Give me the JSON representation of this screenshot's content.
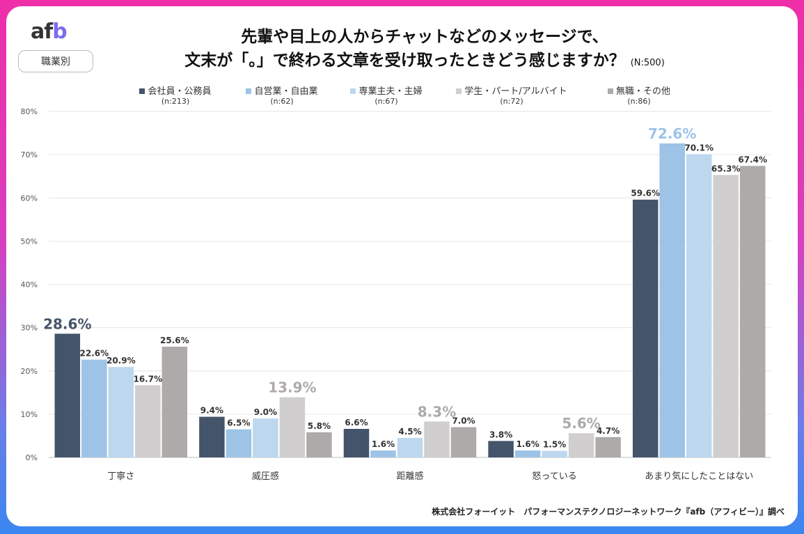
{
  "logo": "afb",
  "tag": "職業別",
  "title_line1": "先輩や目上の人からチャットなどのメッセージで、",
  "title_line2": "文末が「。」で終わる文章を受け取ったときどう感じますか？",
  "sample": "(N:500)",
  "source": "株式会社フォーイット　パフォーマンステクノロジーネットワーク『afb（アフィビー）』調べ",
  "chart_data": {
    "type": "bar",
    "title": "先輩や目上の人からチャットなどのメッセージで、文末が「。」で終わる文章を受け取ったときどう感じますか？",
    "categories": [
      "丁寧さ",
      "威圧感",
      "距離感",
      "怒っている",
      "あまり気にしたことはない"
    ],
    "ylim": [
      0,
      80
    ],
    "yticks": [
      "0%",
      "10%",
      "20%",
      "30%",
      "40%",
      "50%",
      "60%",
      "70%",
      "80%"
    ],
    "grid": true,
    "legend_position": "top",
    "series": [
      {
        "name": "会社員・公務員",
        "n": "(n:213)",
        "color": "#44546a",
        "values": [
          28.6,
          9.4,
          6.6,
          3.8,
          59.6
        ]
      },
      {
        "name": "自営業・自由業",
        "n": "(n:62)",
        "color": "#9dc3e6",
        "values": [
          22.6,
          6.5,
          1.6,
          1.6,
          72.6
        ]
      },
      {
        "name": "専業主夫・主婦",
        "n": "(n:67)",
        "color": "#bdd7ee",
        "values": [
          20.9,
          9.0,
          4.5,
          1.5,
          70.1
        ]
      },
      {
        "name": "学生・パート/アルバイト",
        "n": "(n:72)",
        "color": "#d0cece",
        "values": [
          16.7,
          13.9,
          8.3,
          5.6,
          65.3
        ]
      },
      {
        "name": "無職・その他",
        "n": "(n:86)",
        "color": "#aeaaaa",
        "values": [
          25.6,
          5.8,
          7.0,
          4.7,
          67.4
        ]
      }
    ]
  }
}
